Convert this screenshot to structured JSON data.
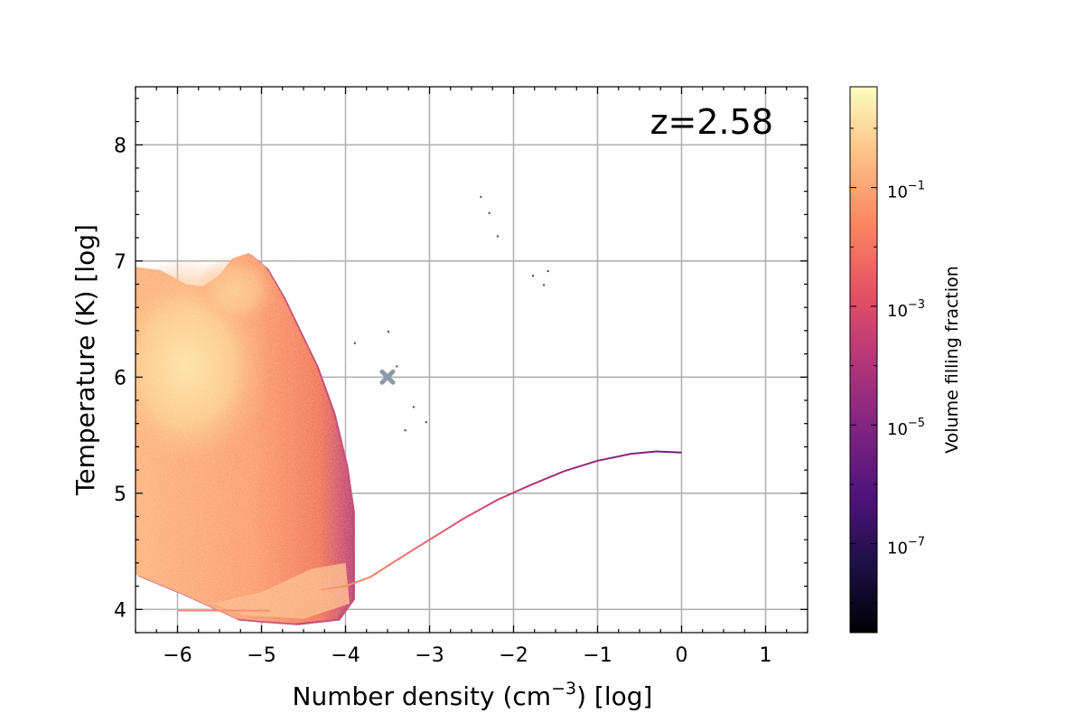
{
  "chart_data": {
    "type": "heatmap",
    "xlabel": "Number density (cm",
    "xlabel_sup": "−3",
    "xlabel_suffix": ") [log]",
    "ylabel": "Temperature (K) [log]",
    "xlim": [
      -6.5,
      1.5
    ],
    "ylim": [
      3.8,
      8.5
    ],
    "x_ticks": [
      -6,
      -5,
      -4,
      -3,
      -2,
      -1,
      0,
      1
    ],
    "x_tick_labels": [
      "−6",
      "−5",
      "−4",
      "−3",
      "−2",
      "−1",
      "0",
      "1"
    ],
    "y_ticks": [
      4,
      5,
      6,
      7,
      8
    ],
    "y_tick_labels": [
      "4",
      "5",
      "6",
      "7",
      "8"
    ],
    "grid": true,
    "annotation": "z=2.58",
    "marker": {
      "x": -3.5,
      "y": 6.0,
      "symbol": "X",
      "color": "#8c9aa8"
    },
    "colorbar": {
      "label": "Volume filling fraction",
      "colormap": "magma",
      "scale": "log",
      "range_exponent": [
        -8.5,
        0.7
      ],
      "ticks_exponent": [
        -1,
        -3,
        -5,
        -7
      ],
      "tick_labels": [
        {
          "base": "10",
          "exp": "−1"
        },
        {
          "base": "10",
          "exp": "−3"
        },
        {
          "base": "10",
          "exp": "−5"
        },
        {
          "base": "10",
          "exp": "−7"
        }
      ]
    },
    "main_region": {
      "description_values": "broad distribution of gas cells",
      "x_range": [
        -6.5,
        -3.9
      ],
      "y_range": [
        3.9,
        7.2
      ],
      "peak": {
        "x": -5.9,
        "y": 6.1
      }
    },
    "equilibrium_track": {
      "points": [
        [
          -4.3,
          4.17
        ],
        [
          -4.0,
          4.2
        ],
        [
          -3.7,
          4.28
        ],
        [
          -3.4,
          4.42
        ],
        [
          -3.0,
          4.6
        ],
        [
          -2.6,
          4.78
        ],
        [
          -2.2,
          4.94
        ],
        [
          -1.8,
          5.07
        ],
        [
          -1.4,
          5.19
        ],
        [
          -1.0,
          5.28
        ],
        [
          -0.6,
          5.34
        ],
        [
          -0.3,
          5.36
        ],
        [
          0.0,
          5.35
        ]
      ],
      "low_x_color": "#fc9e6c",
      "high_x_color": "#6b1f80"
    }
  }
}
